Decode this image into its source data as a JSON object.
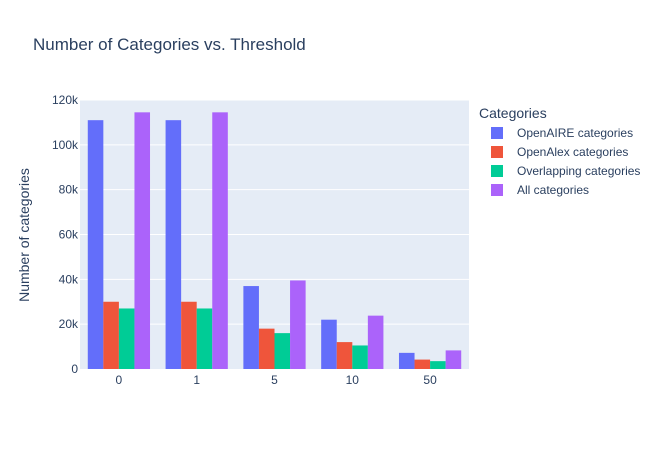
{
  "chart_data": {
    "type": "bar",
    "title": "Number of Categories vs. Threshold",
    "xlabel": "",
    "ylabel": "Number of categories",
    "categories": [
      "0",
      "1",
      "5",
      "10",
      "50"
    ],
    "y_ticks": [
      "0",
      "20k",
      "40k",
      "60k",
      "80k",
      "100k",
      "120k"
    ],
    "ylim": [
      0,
      120000
    ],
    "grid": true,
    "legend": {
      "title": "Categories",
      "placement": "right"
    },
    "series": [
      {
        "name": "OpenAIRE categories",
        "color": "#636efa",
        "values": [
          111000,
          111000,
          37000,
          22000,
          7200
        ]
      },
      {
        "name": "OpenAlex categories",
        "color": "#ef553b",
        "values": [
          30000,
          30000,
          18000,
          12000,
          4200
        ]
      },
      {
        "name": "Overlapping categories",
        "color": "#00cc96",
        "values": [
          27000,
          27000,
          16000,
          10500,
          3500
        ]
      },
      {
        "name": "All categories",
        "color": "#ab63fa",
        "values": [
          114500,
          114500,
          39500,
          23800,
          8300
        ]
      }
    ]
  }
}
